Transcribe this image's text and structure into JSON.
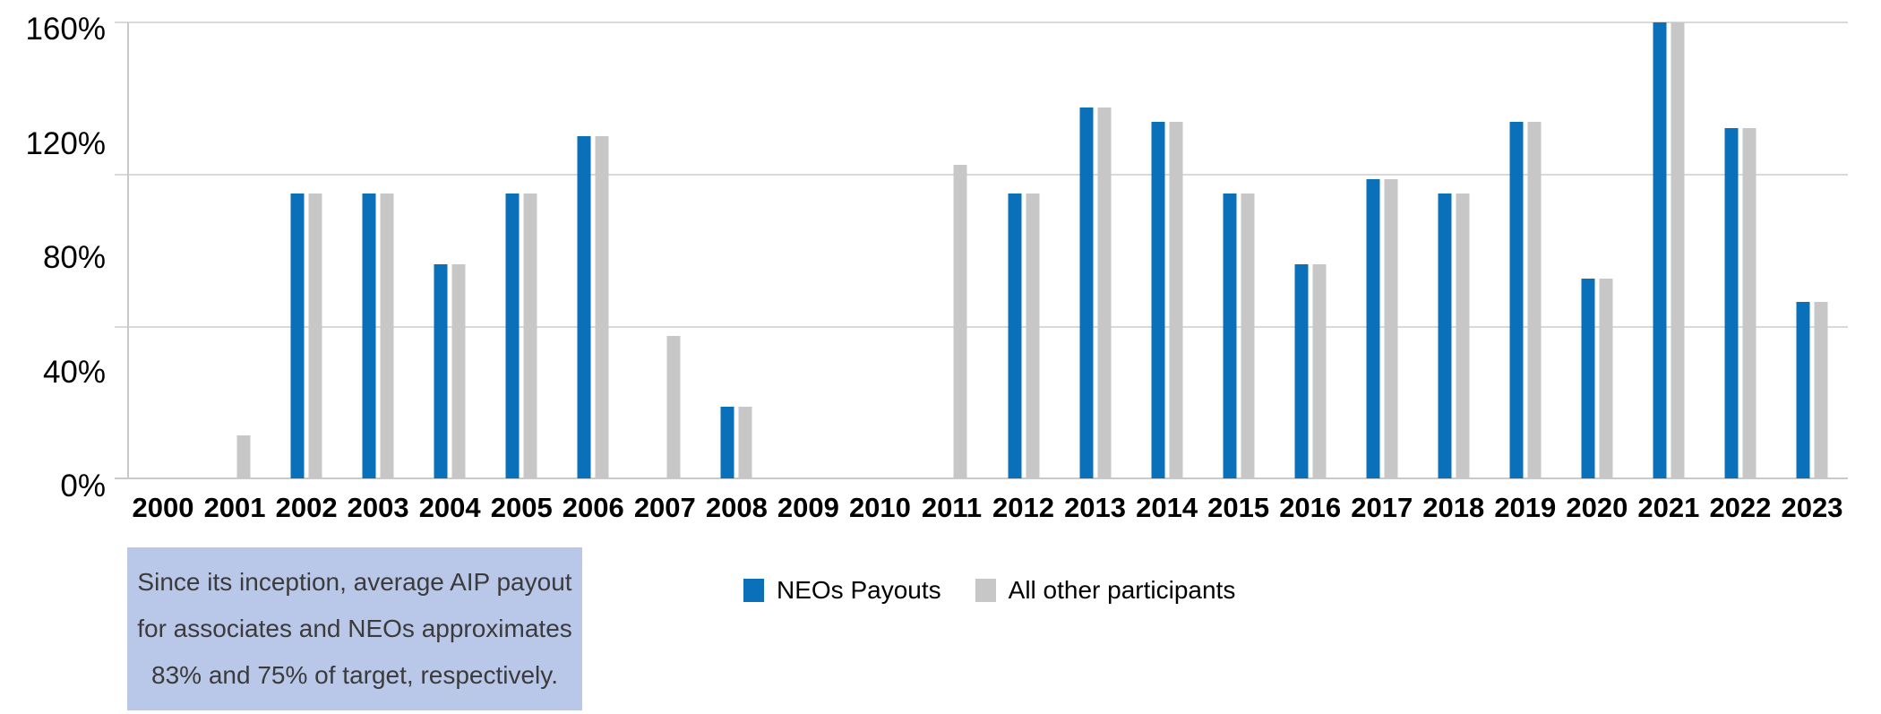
{
  "chart_data": {
    "type": "bar",
    "title": "",
    "categories": [
      "2000",
      "2001",
      "2002",
      "2003",
      "2004",
      "2005",
      "2006",
      "2007",
      "2008",
      "2009",
      "2010",
      "2011",
      "2012",
      "2013",
      "2014",
      "2015",
      "2016",
      "2017",
      "2018",
      "2019",
      "2020",
      "2021",
      "2022",
      "2023"
    ],
    "series": [
      {
        "name": "NEOs Payouts",
        "color": "#0a70b9",
        "values": [
          0,
          0,
          100,
          100,
          75,
          100,
          120,
          0,
          25,
          0,
          0,
          0,
          100,
          130,
          125,
          100,
          75,
          105,
          100,
          125,
          70,
          160,
          123,
          62
        ]
      },
      {
        "name": "All other participants",
        "color": "#c7c7c7",
        "values": [
          0,
          15,
          100,
          100,
          75,
          100,
          120,
          50,
          25,
          0,
          0,
          110,
          100,
          130,
          125,
          100,
          75,
          105,
          100,
          125,
          70,
          160,
          123,
          62
        ]
      }
    ],
    "xlabel": "",
    "ylabel": "",
    "unit": "%",
    "y_axis": {
      "min": 0,
      "max": 160,
      "ticks": [
        "160%",
        "120%",
        "80%",
        "40%",
        "0%"
      ]
    },
    "grid": "horizontal",
    "gridline_color": "#d9d9d9",
    "axis_color": "#c9c9c9",
    "legend_position": "bottom"
  },
  "legend": {
    "items": [
      {
        "label": "NEOs Payouts",
        "color": "#0a70b9"
      },
      {
        "label": "All other participants",
        "color": "#c7c7c7"
      }
    ]
  },
  "note_box": {
    "background": "#b9c7e8",
    "text_color": "#3b3b3b",
    "lines": [
      "Since its inception, average AIP payout",
      "for associates and NEOs approximates",
      "83% and 75% of target, respectively."
    ]
  }
}
